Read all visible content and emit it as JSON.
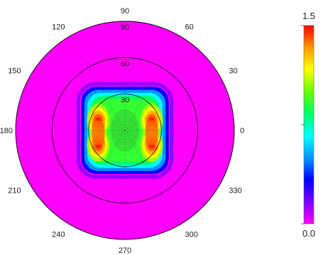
{
  "chart_data": {
    "type": "heatmap",
    "projection": "polar",
    "angular_ticks": [
      "0",
      "30",
      "60",
      "90",
      "120",
      "150",
      "180",
      "210",
      "240",
      "270",
      "300",
      "330"
    ],
    "radial_ticks": [
      "30",
      "60",
      "90"
    ],
    "radial_range": [
      0,
      90
    ],
    "grid": true,
    "colorbar": {
      "min_label": "0.0",
      "max_label": "1.5",
      "range": [
        0,
        1.5
      ],
      "colors": [
        "#ff00ff",
        "#7a00ff",
        "#0000ff",
        "#0099ff",
        "#00ffff",
        "#00ff66",
        "#66ff00",
        "#ffff00",
        "#ff9900",
        "#ff0000"
      ]
    },
    "field": {
      "shape": "rounded-square",
      "center": [
        0,
        0
      ],
      "half_width_deg": 36,
      "corner_radius_deg": 10,
      "peak_value": 1.5,
      "peak_locations_deg": [
        [
          -22,
          8
        ],
        [
          22,
          8
        ],
        [
          -22,
          -12
        ],
        [
          22,
          -12
        ]
      ],
      "background_value": 0.0
    }
  }
}
